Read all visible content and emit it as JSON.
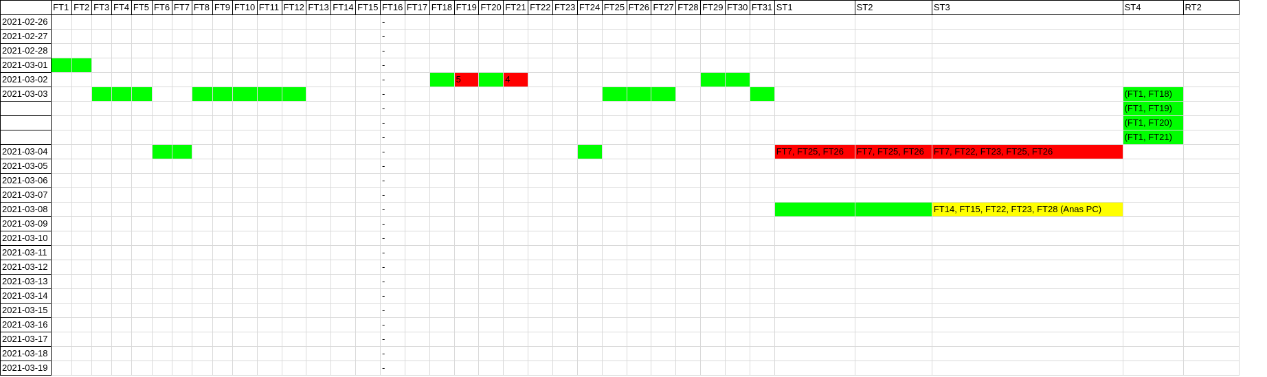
{
  "sheet": {
    "colors": {
      "green": "#00ff00",
      "red": "#ff0000",
      "yellow": "#ffff00",
      "grid": "#d9d9d9",
      "border": "#000000"
    },
    "columns": [
      "",
      "FT1",
      "FT2",
      "FT3",
      "FT4",
      "FT5",
      "FT6",
      "FT7",
      "FT8",
      "FT9",
      "FT10",
      "FT11",
      "FT12",
      "FT13",
      "FT14",
      "FT15",
      "FT16",
      "FT17",
      "FT18",
      "FT19",
      "FT20",
      "FT21",
      "FT22",
      "FT23",
      "FT24",
      "FT25",
      "FT26",
      "FT27",
      "FT28",
      "FT29",
      "FT30",
      "FT31",
      "ST1",
      "ST2",
      "ST3",
      "ST4",
      "RT2"
    ],
    "rows": [
      {
        "date": "2021-02-26",
        "cells": []
      },
      {
        "date": "2021-02-27",
        "cells": []
      },
      {
        "date": "2021-02-28",
        "cells": []
      },
      {
        "date": "2021-03-01",
        "cells": [
          {
            "col": "FT1",
            "fill": "green"
          },
          {
            "col": "FT2",
            "fill": "green"
          }
        ]
      },
      {
        "date": "2021-03-02",
        "cells": [
          {
            "col": "FT18",
            "fill": "green"
          },
          {
            "col": "FT19",
            "fill": "red",
            "text": "5"
          },
          {
            "col": "FT20",
            "fill": "green"
          },
          {
            "col": "FT21",
            "fill": "red",
            "text": "4"
          },
          {
            "col": "FT29",
            "fill": "green"
          },
          {
            "col": "FT30",
            "fill": "green"
          }
        ]
      },
      {
        "date": "2021-03-03",
        "cells": [
          {
            "col": "FT3",
            "fill": "green"
          },
          {
            "col": "FT4",
            "fill": "green"
          },
          {
            "col": "FT5",
            "fill": "green"
          },
          {
            "col": "FT8",
            "fill": "green"
          },
          {
            "col": "FT9",
            "fill": "green"
          },
          {
            "col": "FT10",
            "fill": "green"
          },
          {
            "col": "FT11",
            "fill": "green"
          },
          {
            "col": "FT12",
            "fill": "green"
          },
          {
            "col": "FT25",
            "fill": "green"
          },
          {
            "col": "FT26",
            "fill": "green"
          },
          {
            "col": "FT27",
            "fill": "green"
          },
          {
            "col": "FT31",
            "fill": "green"
          },
          {
            "col": "ST4",
            "fill": "green",
            "text": "(FT1, FT18)"
          }
        ]
      },
      {
        "date": "",
        "cells": [
          {
            "col": "ST4",
            "fill": "green",
            "text": "(FT1, FT19)"
          }
        ]
      },
      {
        "date": "",
        "cells": [
          {
            "col": "ST4",
            "fill": "green",
            "text": "(FT1, FT20)"
          }
        ]
      },
      {
        "date": "",
        "cells": [
          {
            "col": "ST4",
            "fill": "green",
            "text": "(FT1, FT21)"
          }
        ]
      },
      {
        "date": "2021-03-04",
        "cells": [
          {
            "col": "FT6",
            "fill": "green"
          },
          {
            "col": "FT7",
            "fill": "green"
          },
          {
            "col": "FT24",
            "fill": "green"
          },
          {
            "col": "ST1",
            "fill": "red",
            "text": "FT7, FT25, FT26"
          },
          {
            "col": "ST2",
            "fill": "red",
            "text": "FT7, FT25, FT26"
          },
          {
            "col": "ST3",
            "fill": "red",
            "text": "FT7, FT22, FT23, FT25, FT26"
          }
        ]
      },
      {
        "date": "2021-03-05",
        "cells": []
      },
      {
        "date": "2021-03-06",
        "cells": []
      },
      {
        "date": "2021-03-07",
        "cells": []
      },
      {
        "date": "2021-03-08",
        "cells": [
          {
            "col": "ST1",
            "fill": "green"
          },
          {
            "col": "ST2",
            "fill": "green"
          },
          {
            "col": "ST3",
            "fill": "yellow",
            "text": "FT14, FT15, FT22, FT23, FT28 (Anas PC)"
          }
        ]
      },
      {
        "date": "2021-03-09",
        "cells": []
      },
      {
        "date": "2021-03-10",
        "cells": []
      },
      {
        "date": "2021-03-11",
        "cells": []
      },
      {
        "date": "2021-03-12",
        "cells": []
      },
      {
        "date": "2021-03-13",
        "cells": []
      },
      {
        "date": "2021-03-14",
        "cells": []
      },
      {
        "date": "2021-03-15",
        "cells": []
      },
      {
        "date": "2021-03-16",
        "cells": []
      },
      {
        "date": "2021-03-17",
        "cells": []
      },
      {
        "date": "2021-03-18",
        "cells": []
      },
      {
        "date": "2021-03-19",
        "cells": []
      }
    ],
    "ft16_marker": "-"
  }
}
